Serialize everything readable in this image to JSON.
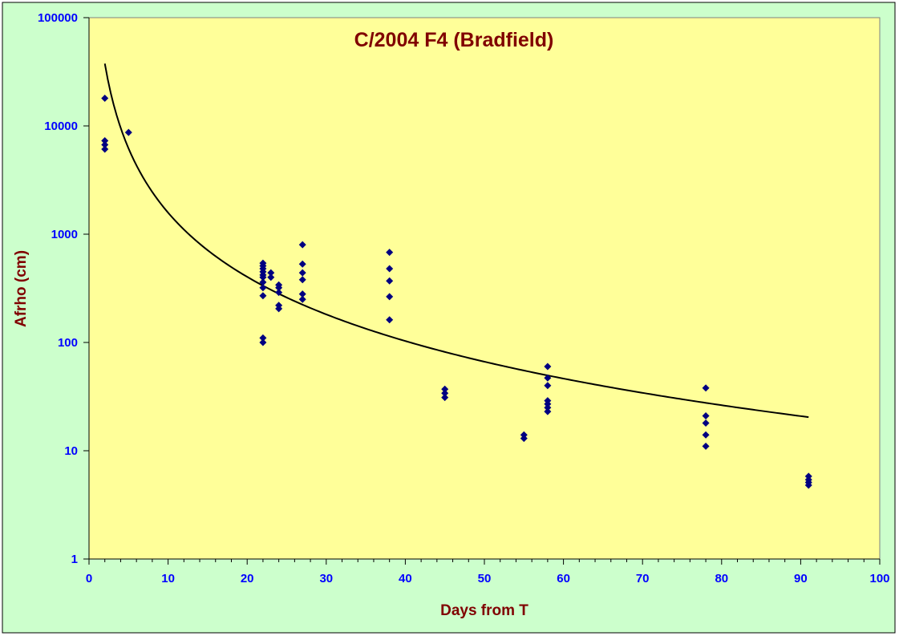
{
  "chart_data": {
    "type": "scatter",
    "title": "C/2004 F4 (Bradfield)",
    "xlabel": "Days from T",
    "ylabel": "Afrho (cm)",
    "xlim": [
      0,
      100
    ],
    "ylim": [
      1,
      100000
    ],
    "yscale": "log",
    "x_ticks": [
      0,
      10,
      20,
      30,
      40,
      50,
      60,
      70,
      80,
      90,
      100
    ],
    "y_ticks": [
      1,
      10,
      100,
      1000,
      10000,
      100000
    ],
    "grid": false,
    "legend": "none",
    "series": [
      {
        "marker": "diamond",
        "color": "#000080",
        "points": [
          [
            2,
            18000
          ],
          [
            2,
            7300
          ],
          [
            2,
            6700
          ],
          [
            2,
            6100
          ],
          [
            5,
            8700
          ],
          [
            22,
            540
          ],
          [
            22,
            510
          ],
          [
            22,
            480
          ],
          [
            22,
            450
          ],
          [
            22,
            420
          ],
          [
            22,
            400
          ],
          [
            22,
            360
          ],
          [
            22,
            320
          ],
          [
            22,
            270
          ],
          [
            22,
            110
          ],
          [
            22,
            100
          ],
          [
            23,
            440
          ],
          [
            23,
            400
          ],
          [
            24,
            340
          ],
          [
            24,
            320
          ],
          [
            24,
            290
          ],
          [
            24,
            220
          ],
          [
            24,
            205
          ],
          [
            27,
            800
          ],
          [
            27,
            530
          ],
          [
            27,
            440
          ],
          [
            27,
            380
          ],
          [
            27,
            280
          ],
          [
            27,
            250
          ],
          [
            38,
            680
          ],
          [
            38,
            480
          ],
          [
            38,
            370
          ],
          [
            38,
            265
          ],
          [
            38,
            162
          ],
          [
            45,
            37
          ],
          [
            45,
            34
          ],
          [
            45,
            31
          ],
          [
            55,
            14
          ],
          [
            55,
            13
          ],
          [
            58,
            60
          ],
          [
            58,
            47
          ],
          [
            58,
            40
          ],
          [
            58,
            29
          ],
          [
            58,
            27
          ],
          [
            58,
            25
          ],
          [
            58,
            23
          ],
          [
            78,
            38
          ],
          [
            78,
            21
          ],
          [
            78,
            18
          ],
          [
            78,
            14
          ],
          [
            78,
            11
          ],
          [
            91,
            5.8
          ],
          [
            91,
            5.4
          ],
          [
            91,
            5.1
          ],
          [
            91,
            4.8
          ]
        ]
      }
    ],
    "trendline": {
      "type": "power",
      "color": "#000000",
      "x_range": [
        2,
        91
      ],
      "points": [
        [
          2,
          31500
        ],
        [
          3,
          15000
        ],
        [
          5,
          5900
        ],
        [
          8,
          2600
        ],
        [
          10,
          1750
        ],
        [
          15,
          800
        ],
        [
          20,
          460
        ],
        [
          25,
          300
        ],
        [
          30,
          210
        ],
        [
          38,
          130
        ],
        [
          45,
          92
        ],
        [
          50,
          74
        ],
        [
          55,
          60
        ],
        [
          58,
          42
        ],
        [
          60,
          39
        ],
        [
          70,
          30
        ],
        [
          80,
          23
        ],
        [
          91,
          17
        ]
      ]
    },
    "colors": {
      "page_background": "#ccffcc",
      "plot_background": "#ffff99",
      "title": "#800000",
      "axis_title": "#800000",
      "tick_labels": "#0000ff",
      "markers": "#000080"
    }
  }
}
